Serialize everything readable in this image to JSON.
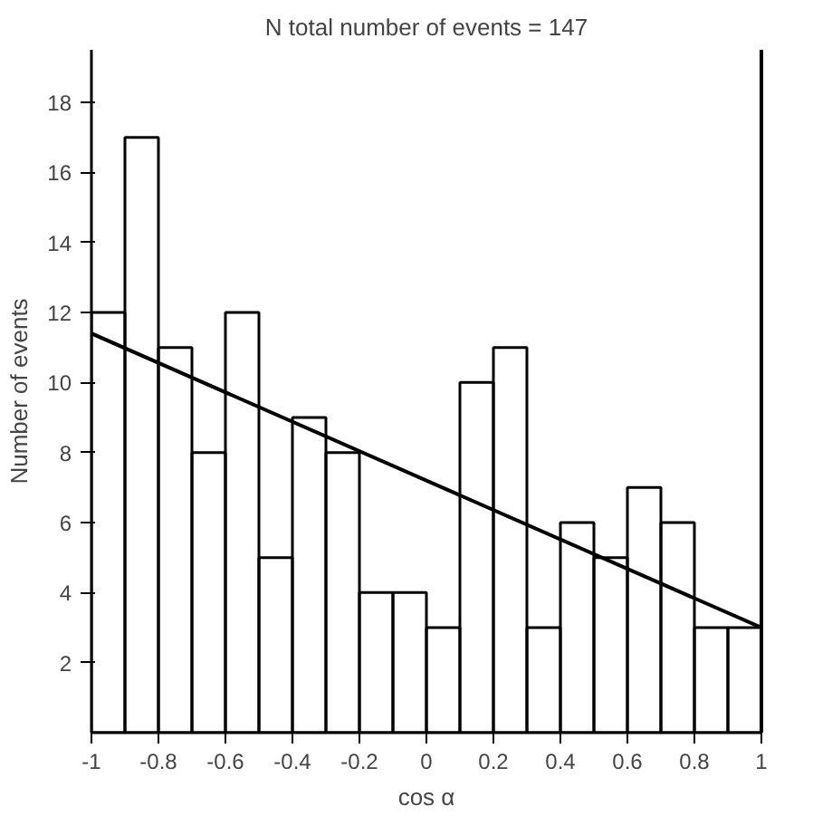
{
  "chart_data": {
    "type": "histogram",
    "title": "N total number of events = 147",
    "xlabel": "cos α",
    "ylabel": "Number of events",
    "bins": [
      -1,
      -0.9,
      -0.8,
      -0.7,
      -0.6,
      -0.5,
      -0.4,
      -0.3,
      -0.2,
      -0.1,
      0,
      0.1,
      0.2,
      0.3,
      0.4,
      0.5,
      0.6,
      0.7,
      0.8,
      0.9,
      1
    ],
    "series": [
      {
        "color": "#000000",
        "values": [
          12,
          17,
          11,
          8,
          12,
          5,
          9,
          8,
          4,
          4,
          3,
          10,
          11,
          3,
          6,
          5,
          7,
          6,
          3,
          3
        ]
      },
      {
        "type": "line",
        "color": "#000000",
        "x": [
          -1,
          1
        ],
        "values": [
          11.4,
          3
        ]
      }
    ],
    "xlim": [
      -1,
      1
    ],
    "ylim": [
      0,
      19.5
    ],
    "xticks": [
      -1,
      -0.8,
      -0.6,
      -0.4,
      -0.2,
      0,
      0.2,
      0.4,
      0.6,
      0.8,
      1
    ],
    "yticks": [
      2,
      4,
      6,
      8,
      10,
      12,
      14,
      16,
      18
    ],
    "grid": false
  }
}
